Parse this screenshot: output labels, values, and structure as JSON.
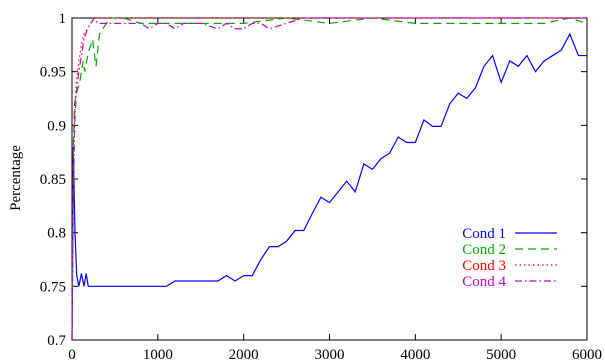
{
  "chart_data": {
    "type": "line",
    "xlabel": "",
    "ylabel": "Percentage",
    "xlim": [
      0,
      6000
    ],
    "ylim": [
      0.7,
      1.0
    ],
    "xticks": [
      0,
      1000,
      2000,
      3000,
      4000,
      5000,
      6000
    ],
    "yticks": [
      0.7,
      0.75,
      0.8,
      0.85,
      0.9,
      0.95,
      1
    ],
    "xtick_labels": [
      "0",
      "1000",
      "2000",
      "3000",
      "4000",
      "5000",
      "6000"
    ],
    "ytick_labels": [
      "0.7",
      "0.75",
      "0.8",
      "0.85",
      "0.9",
      "0.95",
      "1"
    ],
    "grid": false,
    "legend_position": "bottom-right",
    "series": [
      {
        "name": "Cond 1",
        "color": "#0000ff",
        "dash": "solid",
        "points": [
          [
            0,
            0.7
          ],
          [
            15,
            0.88
          ],
          [
            35,
            0.8
          ],
          [
            55,
            0.76
          ],
          [
            80,
            0.75
          ],
          [
            110,
            0.762
          ],
          [
            140,
            0.75
          ],
          [
            165,
            0.762
          ],
          [
            190,
            0.75
          ],
          [
            400,
            0.75
          ],
          [
            800,
            0.75
          ],
          [
            1100,
            0.75
          ],
          [
            1200,
            0.755
          ],
          [
            1400,
            0.755
          ],
          [
            1700,
            0.755
          ],
          [
            1800,
            0.76
          ],
          [
            1900,
            0.755
          ],
          [
            2000,
            0.76
          ],
          [
            2100,
            0.76
          ],
          [
            2200,
            0.775
          ],
          [
            2300,
            0.787
          ],
          [
            2400,
            0.787
          ],
          [
            2500,
            0.792
          ],
          [
            2600,
            0.802
          ],
          [
            2700,
            0.802
          ],
          [
            2800,
            0.818
          ],
          [
            2900,
            0.833
          ],
          [
            3000,
            0.828
          ],
          [
            3100,
            0.838
          ],
          [
            3200,
            0.848
          ],
          [
            3300,
            0.838
          ],
          [
            3400,
            0.864
          ],
          [
            3500,
            0.859
          ],
          [
            3600,
            0.869
          ],
          [
            3700,
            0.874
          ],
          [
            3800,
            0.889
          ],
          [
            3900,
            0.884
          ],
          [
            4000,
            0.884
          ],
          [
            4100,
            0.905
          ],
          [
            4200,
            0.899
          ],
          [
            4300,
            0.899
          ],
          [
            4400,
            0.92
          ],
          [
            4500,
            0.93
          ],
          [
            4600,
            0.925
          ],
          [
            4700,
            0.935
          ],
          [
            4800,
            0.955
          ],
          [
            4900,
            0.965
          ],
          [
            5000,
            0.94
          ],
          [
            5100,
            0.96
          ],
          [
            5200,
            0.955
          ],
          [
            5300,
            0.965
          ],
          [
            5400,
            0.95
          ],
          [
            5500,
            0.96
          ],
          [
            5600,
            0.965
          ],
          [
            5700,
            0.97
          ],
          [
            5800,
            0.985
          ],
          [
            5900,
            0.965
          ],
          [
            6000,
            0.965
          ]
        ]
      },
      {
        "name": "Cond 2",
        "color": "#00aa00",
        "dash": "8,5",
        "points": [
          [
            0,
            0.7
          ],
          [
            15,
            0.88
          ],
          [
            30,
            0.92
          ],
          [
            50,
            0.93
          ],
          [
            70,
            0.935
          ],
          [
            90,
            0.94
          ],
          [
            110,
            0.95
          ],
          [
            130,
            0.96
          ],
          [
            150,
            0.95
          ],
          [
            170,
            0.96
          ],
          [
            200,
            0.97
          ],
          [
            240,
            0.98
          ],
          [
            280,
            0.955
          ],
          [
            320,
            0.985
          ],
          [
            360,
            0.99
          ],
          [
            400,
            0.995
          ],
          [
            450,
            1.0
          ],
          [
            600,
            1.0
          ],
          [
            800,
            0.995
          ],
          [
            1200,
            0.995
          ],
          [
            2000,
            0.995
          ],
          [
            2500,
            1.0
          ],
          [
            3000,
            0.995
          ],
          [
            3500,
            1.0
          ],
          [
            4000,
            0.995
          ],
          [
            4500,
            0.995
          ],
          [
            5000,
            0.995
          ],
          [
            5500,
            0.995
          ],
          [
            5800,
            1.0
          ],
          [
            6000,
            0.995
          ]
        ]
      },
      {
        "name": "Cond 3",
        "color": "#ff0000",
        "dash": "1.5,3",
        "points": [
          [
            0,
            0.7
          ],
          [
            15,
            0.85
          ],
          [
            30,
            0.91
          ],
          [
            50,
            0.94
          ],
          [
            80,
            0.96
          ],
          [
            110,
            0.975
          ],
          [
            140,
            0.985
          ],
          [
            180,
            0.99
          ],
          [
            220,
            0.995
          ],
          [
            260,
            1.0
          ],
          [
            400,
            1.0
          ],
          [
            600,
            1.0
          ],
          [
            1000,
            1.0
          ],
          [
            1500,
            1.0
          ],
          [
            2000,
            1.0
          ],
          [
            3000,
            1.0
          ],
          [
            4000,
            1.0
          ],
          [
            5000,
            1.0
          ],
          [
            6000,
            1.0
          ]
        ]
      },
      {
        "name": "Cond 4",
        "color": "#cc00cc",
        "dash": "7,3,1.5,3",
        "points": [
          [
            0,
            0.7
          ],
          [
            15,
            0.83
          ],
          [
            30,
            0.9
          ],
          [
            50,
            0.93
          ],
          [
            80,
            0.95
          ],
          [
            110,
            0.965
          ],
          [
            140,
            0.98
          ],
          [
            180,
            0.99
          ],
          [
            220,
            0.995
          ],
          [
            260,
            1.0
          ],
          [
            300,
            0.995
          ],
          [
            400,
            0.995
          ],
          [
            600,
            0.995
          ],
          [
            800,
            0.995
          ],
          [
            900,
            0.99
          ],
          [
            1000,
            0.995
          ],
          [
            1100,
            0.995
          ],
          [
            1200,
            0.99
          ],
          [
            1300,
            0.995
          ],
          [
            1500,
            0.995
          ],
          [
            1700,
            0.99
          ],
          [
            1800,
            0.995
          ],
          [
            1900,
            0.99
          ],
          [
            2000,
            0.99
          ],
          [
            2100,
            0.995
          ],
          [
            2200,
            0.995
          ],
          [
            2300,
            0.99
          ],
          [
            2500,
            0.995
          ],
          [
            2700,
            1.0
          ],
          [
            3000,
            1.0
          ],
          [
            3500,
            1.0
          ],
          [
            4000,
            1.0
          ],
          [
            4500,
            1.0
          ],
          [
            5000,
            1.0
          ],
          [
            5500,
            1.0
          ],
          [
            6000,
            1.0
          ]
        ]
      }
    ]
  }
}
